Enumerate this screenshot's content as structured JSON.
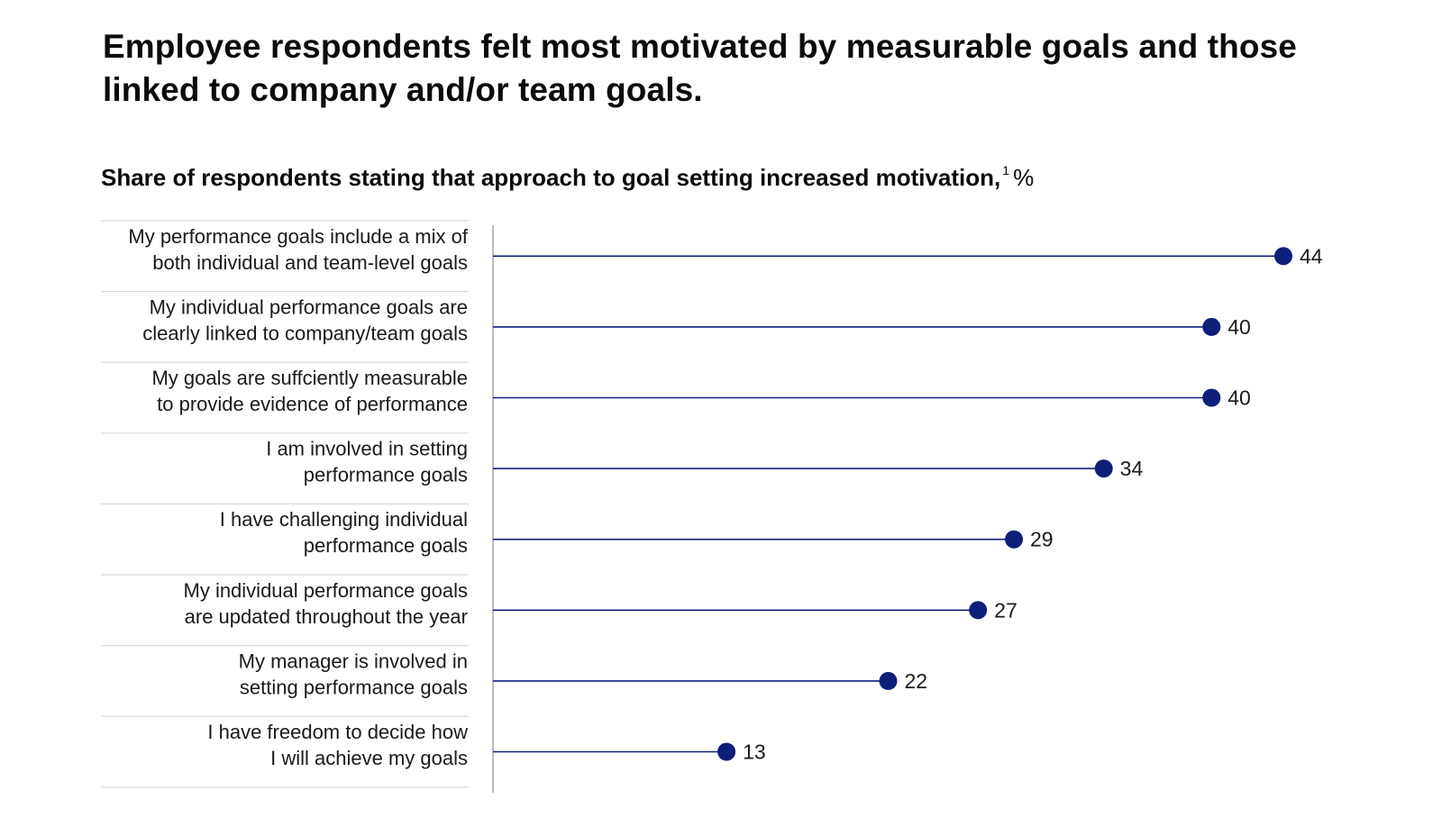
{
  "headline": "Employee respondents felt most motivated by measurable goals and those linked to company and/or team goals.",
  "subtitle": {
    "text": "Share of respondents stating that approach to goal setting increased motivation,",
    "footnote": "1",
    "unit": "%"
  },
  "colors": {
    "accent": "#0d1f78",
    "divider": "#d9d9d9",
    "axis": "#a6a6a6"
  },
  "chart_data": {
    "type": "lollipop",
    "orientation": "horizontal",
    "xlim": [
      0,
      44
    ],
    "grid": false,
    "categories": [
      [
        "My performance goals include a mix of",
        "both individual and team-level goals"
      ],
      [
        "My individual performance goals are",
        "clearly linked to company/team goals"
      ],
      [
        "My goals are suffciently measurable",
        "to provide evidence of performance"
      ],
      [
        "I am involved in setting",
        "performance goals"
      ],
      [
        "I have challenging individual",
        "performance goals"
      ],
      [
        "My individual performance goals",
        "are updated throughout the year"
      ],
      [
        "My manager is involved in",
        "setting performance goals"
      ],
      [
        "I have freedom to decide how",
        "I will achieve my goals"
      ]
    ],
    "values": [
      44,
      40,
      40,
      34,
      29,
      27,
      22,
      13
    ]
  }
}
